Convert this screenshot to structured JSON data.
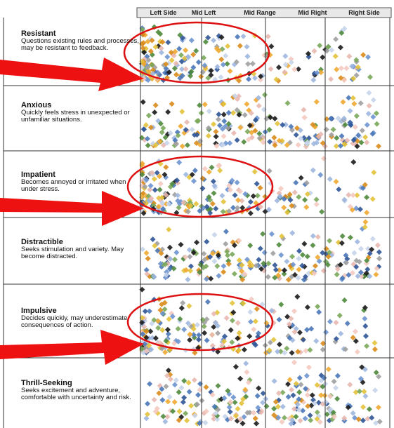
{
  "columns": [
    "Left Side",
    "Mid Left",
    "Mid Range",
    "Mid Right",
    "Right Side"
  ],
  "rows": [
    {
      "title": "Resistant",
      "description": "Questions existing rules and processes, may be resistant to feedback."
    },
    {
      "title": "Anxious",
      "description": "Quickly feels stress in unexpected or unfamiliar situations."
    },
    {
      "title": "Impatient",
      "description": "Becomes annoyed or irritated when under stress."
    },
    {
      "title": "Distractible",
      "description": "Seeks stimulation and variety. May become distracted."
    },
    {
      "title": "Impulsive",
      "description": "Decides quickly, may underestimate consequences of action."
    },
    {
      "title": "Thrill-Seeking",
      "description": "Seeks excitement and adventure, comfortable with uncertainty and risk."
    }
  ]
}
